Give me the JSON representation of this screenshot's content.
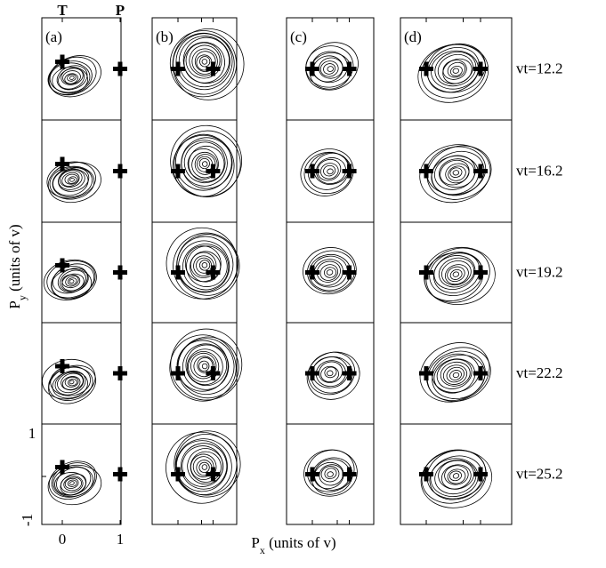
{
  "figure": {
    "panel_labels": [
      "(a)",
      "(b)",
      "(c)",
      "(d)"
    ],
    "row_labels": [
      "vt=12.2",
      "vt=16.2",
      "vt=19.2",
      "vt=22.2",
      "vt=25.2"
    ],
    "top_ticks": [
      "T",
      "P"
    ],
    "x_ticks": [
      "0",
      "1"
    ],
    "y_ticks": [
      "1",
      "-1"
    ],
    "y_axis": {
      "main": "P",
      "sub": "y",
      "rest": " (units of v)"
    },
    "x_axis": {
      "main": "P",
      "sub": "x",
      "rest": " (units of v)"
    }
  }
}
